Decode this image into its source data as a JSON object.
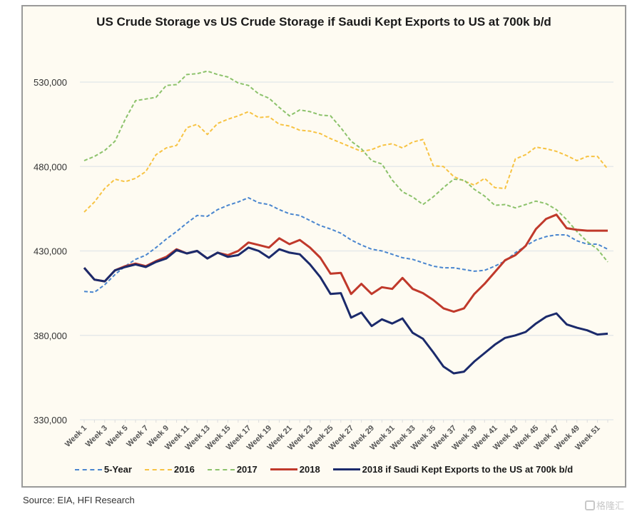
{
  "chart_data": {
    "type": "line",
    "title": "US Crude Storage vs US Crude Storage if Saudi Kept Exports to US at 700k b/d",
    "xlabel": "",
    "ylabel": "",
    "ylim": [
      330000,
      530000
    ],
    "yticks": [
      330000,
      380000,
      430000,
      480000,
      530000
    ],
    "ytick_labels": [
      "330,000",
      "380,000",
      "430,000",
      "480,000",
      "530,000"
    ],
    "grid": "horizontal",
    "legend_position": "bottom",
    "x": [
      "Week 1",
      "Week 2",
      "Week 3",
      "Week 4",
      "Week 5",
      "Week 6",
      "Week 7",
      "Week 8",
      "Week 9",
      "Week 10",
      "Week 11",
      "Week 12",
      "Week 13",
      "Week 14",
      "Week 15",
      "Week 16",
      "Week 17",
      "Week 18",
      "Week 19",
      "Week 20",
      "Week 21",
      "Week 22",
      "Week 23",
      "Week 24",
      "Week 25",
      "Week 26",
      "Week 27",
      "Week 28",
      "Week 29",
      "Week 30",
      "Week 31",
      "Week 32",
      "Week 33",
      "Week 34",
      "Week 35",
      "Week 36",
      "Week 37",
      "Week 38",
      "Week 39",
      "Week 40",
      "Week 41",
      "Week 42",
      "Week 43",
      "Week 44",
      "Week 45",
      "Week 46",
      "Week 47",
      "Week 48",
      "Week 49",
      "Week 50",
      "Week 51",
      "Week 52"
    ],
    "xtick_labels": [
      "Week 1",
      "Week 3",
      "Week 5",
      "Week 7",
      "Week 9",
      "Week 11",
      "Week 13",
      "Week 15",
      "Week 17",
      "Week 19",
      "Week 21",
      "Week 23",
      "Week 25",
      "Week 27",
      "Week 29",
      "Week 31",
      "Week 33",
      "Week 35",
      "Week 37",
      "Week 39",
      "Week 41",
      "Week 43",
      "Week 45",
      "Week 47",
      "Week 49",
      "Week 51"
    ],
    "series": [
      {
        "name": "5-Year",
        "color": "#4a86cf",
        "style": "dashed",
        "values": [
          406000,
          405500,
          410000,
          416000,
          421000,
          425000,
          427500,
          432000,
          437000,
          441500,
          446500,
          451000,
          450500,
          454500,
          457000,
          459000,
          461500,
          458500,
          457500,
          454500,
          452000,
          451000,
          448000,
          445000,
          443000,
          440500,
          436500,
          433500,
          431000,
          430000,
          428000,
          426000,
          425000,
          423000,
          421000,
          420000,
          420000,
          419000,
          418000,
          418500,
          421000,
          424000,
          429000,
          433000,
          436500,
          438500,
          439500,
          439500,
          436000,
          434000,
          434000,
          431000
        ]
      },
      {
        "name": "2016",
        "color": "#f7c343",
        "style": "dashed",
        "values": [
          453000,
          459000,
          467000,
          472500,
          471000,
          473000,
          477000,
          487000,
          491000,
          492500,
          503000,
          505000,
          499000,
          505500,
          508000,
          510000,
          512500,
          509000,
          509500,
          505000,
          504000,
          501500,
          501000,
          499500,
          496500,
          494000,
          491500,
          489000,
          490000,
          492500,
          493500,
          491000,
          494500,
          496000,
          480500,
          480000,
          474000,
          471500,
          469000,
          473000,
          467500,
          467000,
          484500,
          487000,
          491500,
          490500,
          489000,
          486500,
          483500,
          486000,
          486000,
          478500
        ]
      },
      {
        "name": "2017",
        "color": "#8cc26b",
        "style": "dashed",
        "values": [
          483500,
          486000,
          489500,
          495000,
          508000,
          519000,
          520000,
          521000,
          528000,
          528500,
          534500,
          535000,
          536500,
          534500,
          533000,
          529500,
          528000,
          523000,
          520500,
          515000,
          510000,
          513500,
          512500,
          510500,
          510000,
          503000,
          495000,
          490500,
          483500,
          481500,
          472000,
          465000,
          462000,
          457500,
          462000,
          467500,
          472500,
          472000,
          466500,
          462500,
          457000,
          457500,
          455500,
          457500,
          459500,
          458000,
          454500,
          448500,
          441500,
          435500,
          431000,
          423500
        ]
      },
      {
        "name": "2018",
        "color": "#c0392b",
        "style": "solid",
        "values": [
          420000,
          413000,
          412000,
          418500,
          421000,
          422500,
          421000,
          424000,
          426500,
          431000,
          428500,
          430000,
          425500,
          429000,
          427500,
          430000,
          435000,
          433500,
          432000,
          437500,
          434000,
          436500,
          432000,
          426000,
          416500,
          417000,
          404500,
          410500,
          404500,
          408500,
          407500,
          414000,
          407500,
          405000,
          401000,
          396000,
          394000,
          396000,
          404500,
          410500,
          417500,
          424500,
          427500,
          433000,
          443000,
          449000,
          451500,
          443500,
          442500,
          442000,
          442000,
          442000
        ]
      },
      {
        "name": "2018 if Saudi Kept Exports to the US at 700k b/d",
        "color": "#1b2a6b",
        "style": "solid",
        "values": [
          420000,
          413000,
          412000,
          418500,
          420500,
          422000,
          420500,
          423500,
          425500,
          430500,
          428500,
          430000,
          425500,
          429000,
          426500,
          427500,
          432000,
          430000,
          426000,
          431000,
          429000,
          428000,
          422000,
          414500,
          404500,
          405000,
          390500,
          393500,
          385500,
          389500,
          387000,
          390000,
          381500,
          378000,
          370000,
          361500,
          357500,
          358500,
          364500,
          369500,
          374500,
          378500,
          380000,
          382000,
          387000,
          391000,
          393000,
          386500,
          384500,
          383000,
          380500,
          381000
        ]
      }
    ]
  },
  "footer": {
    "source": "Source: EIA, HFI Research",
    "watermark": "格隆汇"
  }
}
